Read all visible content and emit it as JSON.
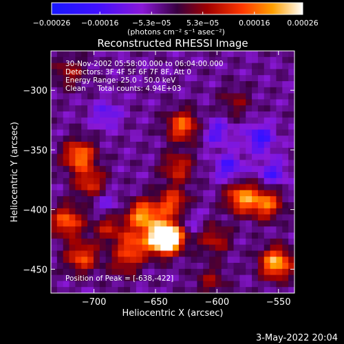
{
  "chart_data": {
    "type": "heatmap",
    "title": "Reconstructed RHESSI Image",
    "xlabel": "Heliocentric X (arcsec)",
    "ylabel": "Heliocentric Y (arcsec)",
    "xlim": [
      -735,
      -537
    ],
    "ylim": [
      -470,
      -267
    ],
    "x_ticks": [
      -700,
      -650,
      -600,
      -550
    ],
    "x_tick_labels": [
      "−700",
      "−650",
      "−600",
      "−550"
    ],
    "y_ticks": [
      -300,
      -350,
      -400,
      -450
    ],
    "y_tick_labels": [
      "−300",
      "−350",
      "−400",
      "−450"
    ],
    "colorbar": {
      "min": -0.00026,
      "max": 0.00026,
      "ticks": [
        -0.00026,
        -0.00016,
        -5.3e-05,
        5.3e-05,
        0.00016,
        0.00026
      ],
      "tick_labels": [
        "−0.00026",
        "−0.00016",
        "−5.3e−05",
        "5.3e−05",
        "0.00016",
        "0.00026"
      ],
      "unit_label": "(photons cm⁻² s⁻¹ asec⁻²)"
    },
    "annotations": [
      "30-Nov-2002 05:58:00.000 to 06:04:00.000",
      "Detectors: 3F 4F 5F 6F 7F 8F, Att 0",
      "Energy Range: 25.0 - 50.0 keV",
      "Clean     Total counts: 4.94E+03"
    ],
    "peak_label": "Position of Peak = [-638,-422]",
    "peak": [
      -638,
      -422
    ],
    "grid": false,
    "hotspots": [
      {
        "x": -712,
        "y": -355,
        "v": 0.00022
      },
      {
        "x": -703,
        "y": -378,
        "v": 0.00015
      },
      {
        "x": -722,
        "y": -410,
        "v": 0.0002
      },
      {
        "x": -710,
        "y": -440,
        "v": 0.00018
      },
      {
        "x": -688,
        "y": -415,
        "v": 0.00012
      },
      {
        "x": -660,
        "y": -405,
        "v": 0.00024
      },
      {
        "x": -668,
        "y": -430,
        "v": 0.00016
      },
      {
        "x": -645,
        "y": -425,
        "v": 0.00026
      },
      {
        "x": -638,
        "y": -422,
        "v": 0.00026
      },
      {
        "x": -636,
        "y": -395,
        "v": 0.00018
      },
      {
        "x": -632,
        "y": -365,
        "v": 0.00014
      },
      {
        "x": -628,
        "y": -330,
        "v": 0.0002
      },
      {
        "x": -602,
        "y": -425,
        "v": 0.00012
      },
      {
        "x": -580,
        "y": -390,
        "v": 0.00022
      },
      {
        "x": -560,
        "y": -395,
        "v": 0.0002
      },
      {
        "x": -552,
        "y": -445,
        "v": 0.00026
      },
      {
        "x": -585,
        "y": -310,
        "v": 8e-05
      },
      {
        "x": -675,
        "y": -445,
        "v": 0.0001
      },
      {
        "x": -720,
        "y": -285,
        "v": 0.0001
      },
      {
        "x": -605,
        "y": -460,
        "v": 9e-05
      }
    ],
    "coldspots": [
      {
        "x": -565,
        "y": -340,
        "v": -0.00014
      },
      {
        "x": -600,
        "y": -335,
        "v": -0.0001
      },
      {
        "x": -690,
        "y": -320,
        "v": -9e-05
      },
      {
        "x": -590,
        "y": -365,
        "v": -0.00012
      },
      {
        "x": -555,
        "y": -370,
        "v": -0.00011
      },
      {
        "x": -625,
        "y": -410,
        "v": -8e-05
      },
      {
        "x": -690,
        "y": -395,
        "v": -7e-05
      }
    ]
  },
  "footer": {
    "date": "3-May-2022 20:04"
  }
}
